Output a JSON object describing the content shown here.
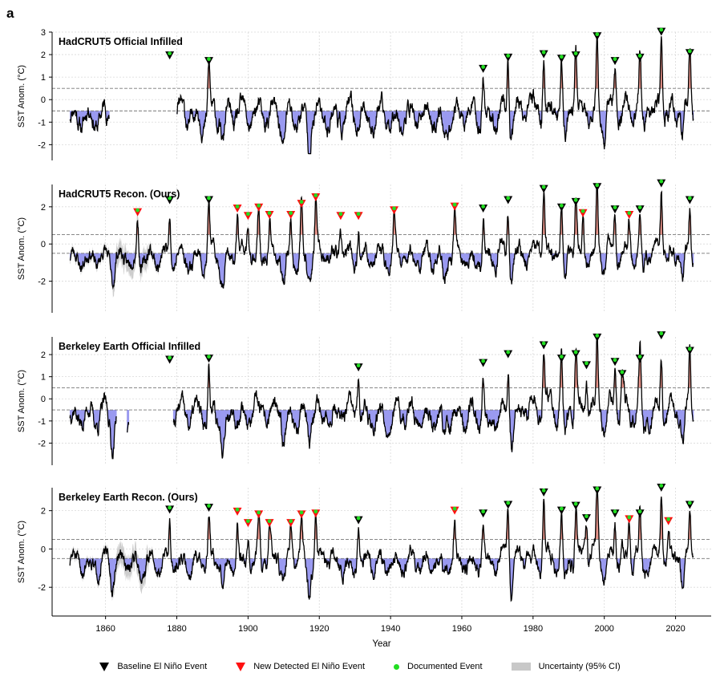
{
  "figure_label": "a",
  "colors": {
    "line": "#000000",
    "warm_fill": "#e8948a",
    "cool_fill": "#9a9af0",
    "baseline_marker": "#000000",
    "new_marker": "#ff1010",
    "documented_dot": "#22dd22",
    "uncertainty": "#c8c8c8",
    "grid": "#d9d9d9",
    "threshold": "#777777"
  },
  "legend": {
    "baseline": "Baseline El Niño Event",
    "new": "New Detected El Niño Event",
    "documented": "Documented Event",
    "uncertainty": "Uncertainty (95% CI)"
  },
  "chart_data": [
    {
      "type": "line",
      "title": "HadCRUT5 Official Infilled",
      "ylabel": "SST Anom. (°C)",
      "xlabel": "",
      "xlim": [
        1845,
        2030
      ],
      "ylim": [
        -2.7,
        3.0
      ],
      "yticks": [
        -2,
        -1,
        0,
        1,
        2,
        3
      ],
      "thresholds": [
        0.5,
        -0.5
      ],
      "data_start": 1850,
      "data_end": 2025,
      "gaps": [
        [
          1861,
          1880
        ]
      ],
      "has_uncertainty": false,
      "seed": 11,
      "events": [
        {
          "year": 1878,
          "value": 1.75,
          "kind": "baseline"
        },
        {
          "year": 1889,
          "value": 1.5,
          "kind": "baseline"
        },
        {
          "year": 1966,
          "value": 1.15,
          "kind": "baseline"
        },
        {
          "year": 1973,
          "value": 1.65,
          "kind": "baseline"
        },
        {
          "year": 1983,
          "value": 1.8,
          "kind": "baseline"
        },
        {
          "year": 1988,
          "value": 1.6,
          "kind": "baseline"
        },
        {
          "year": 1992,
          "value": 1.75,
          "kind": "baseline"
        },
        {
          "year": 1998,
          "value": 2.6,
          "kind": "baseline"
        },
        {
          "year": 2003,
          "value": 1.5,
          "kind": "baseline"
        },
        {
          "year": 2010,
          "value": 1.65,
          "kind": "baseline"
        },
        {
          "year": 2016,
          "value": 2.8,
          "kind": "baseline"
        },
        {
          "year": 2024,
          "value": 1.85,
          "kind": "baseline"
        }
      ]
    },
    {
      "type": "line",
      "title": "HadCRUT5 Recon. (Ours)",
      "ylabel": "SST Anom. (°C)",
      "xlabel": "",
      "xlim": [
        1845,
        2030
      ],
      "ylim": [
        -3.7,
        3.2
      ],
      "yticks": [
        -2,
        0,
        2
      ],
      "thresholds": [
        0.5,
        -0.5
      ],
      "data_start": 1850,
      "data_end": 2025,
      "gaps": [],
      "has_uncertainty": true,
      "seed": 23,
      "events": [
        {
          "year": 1869,
          "value": 1.45,
          "kind": "new"
        },
        {
          "year": 1878,
          "value": 2.1,
          "kind": "baseline"
        },
        {
          "year": 1889,
          "value": 2.1,
          "kind": "baseline"
        },
        {
          "year": 1897,
          "value": 1.65,
          "kind": "new"
        },
        {
          "year": 1900,
          "value": 1.25,
          "kind": "new"
        },
        {
          "year": 1903,
          "value": 1.7,
          "kind": "new"
        },
        {
          "year": 1906,
          "value": 1.3,
          "kind": "new"
        },
        {
          "year": 1912,
          "value": 1.3,
          "kind": "new"
        },
        {
          "year": 1915,
          "value": 1.9,
          "kind": "new"
        },
        {
          "year": 1919,
          "value": 2.25,
          "kind": "new"
        },
        {
          "year": 1926,
          "value": 1.25,
          "kind": "new"
        },
        {
          "year": 1931,
          "value": 1.25,
          "kind": "new"
        },
        {
          "year": 1941,
          "value": 1.55,
          "kind": "new"
        },
        {
          "year": 1958,
          "value": 1.75,
          "kind": "new"
        },
        {
          "year": 1966,
          "value": 1.65,
          "kind": "baseline"
        },
        {
          "year": 1973,
          "value": 2.1,
          "kind": "baseline"
        },
        {
          "year": 1983,
          "value": 2.7,
          "kind": "baseline"
        },
        {
          "year": 1988,
          "value": 1.7,
          "kind": "baseline"
        },
        {
          "year": 1992,
          "value": 2.0,
          "kind": "baseline"
        },
        {
          "year": 1994,
          "value": 1.4,
          "kind": "new"
        },
        {
          "year": 1998,
          "value": 2.8,
          "kind": "baseline"
        },
        {
          "year": 2003,
          "value": 1.6,
          "kind": "baseline"
        },
        {
          "year": 2007,
          "value": 1.3,
          "kind": "new"
        },
        {
          "year": 2010,
          "value": 1.6,
          "kind": "baseline"
        },
        {
          "year": 2016,
          "value": 3.0,
          "kind": "baseline"
        },
        {
          "year": 2024,
          "value": 2.1,
          "kind": "baseline"
        }
      ]
    },
    {
      "type": "line",
      "title": "Berkeley Earth Official Infilled",
      "ylabel": "SST Anom. (°C)",
      "xlabel": "",
      "xlim": [
        1845,
        2030
      ],
      "ylim": [
        -3.0,
        2.8
      ],
      "yticks": [
        -2,
        -1,
        0,
        1,
        2
      ],
      "thresholds": [
        0.5,
        -0.5
      ],
      "data_start": 1850,
      "data_end": 2025,
      "gaps": [
        [
          1863,
          1866
        ],
        [
          1866.5,
          1879
        ]
      ],
      "has_uncertainty": false,
      "seed": 37,
      "events": [
        {
          "year": 1878,
          "value": 1.55,
          "kind": "baseline"
        },
        {
          "year": 1889,
          "value": 1.6,
          "kind": "baseline"
        },
        {
          "year": 1931,
          "value": 1.2,
          "kind": "baseline"
        },
        {
          "year": 1966,
          "value": 1.4,
          "kind": "baseline"
        },
        {
          "year": 1973,
          "value": 1.8,
          "kind": "baseline"
        },
        {
          "year": 1983,
          "value": 2.2,
          "kind": "baseline"
        },
        {
          "year": 1988,
          "value": 1.6,
          "kind": "baseline"
        },
        {
          "year": 1992,
          "value": 1.8,
          "kind": "baseline"
        },
        {
          "year": 1995,
          "value": 1.3,
          "kind": "baseline"
        },
        {
          "year": 1998,
          "value": 2.55,
          "kind": "baseline"
        },
        {
          "year": 2003,
          "value": 1.45,
          "kind": "baseline"
        },
        {
          "year": 2005,
          "value": 0.9,
          "kind": "baseline"
        },
        {
          "year": 2010,
          "value": 1.6,
          "kind": "baseline"
        },
        {
          "year": 2016,
          "value": 2.65,
          "kind": "baseline"
        },
        {
          "year": 2024,
          "value": 1.95,
          "kind": "baseline"
        }
      ]
    },
    {
      "type": "line",
      "title": "Berkeley Earth Recon. (Ours)",
      "ylabel": "SST Anom. (°C)",
      "xlabel": "Year",
      "xlim": [
        1845,
        2030
      ],
      "ylim": [
        -3.5,
        3.2
      ],
      "yticks": [
        -2,
        0,
        2
      ],
      "xticks": [
        1860,
        1880,
        1900,
        1920,
        1940,
        1960,
        1980,
        2000,
        2020
      ],
      "thresholds": [
        0.5,
        -0.5
      ],
      "data_start": 1850,
      "data_end": 2025,
      "gaps": [],
      "has_uncertainty": true,
      "seed": 51,
      "events": [
        {
          "year": 1878,
          "value": 1.8,
          "kind": "baseline"
        },
        {
          "year": 1889,
          "value": 1.9,
          "kind": "baseline"
        },
        {
          "year": 1897,
          "value": 1.7,
          "kind": "new"
        },
        {
          "year": 1900,
          "value": 1.1,
          "kind": "new"
        },
        {
          "year": 1903,
          "value": 1.55,
          "kind": "new"
        },
        {
          "year": 1906,
          "value": 1.1,
          "kind": "new"
        },
        {
          "year": 1912,
          "value": 1.1,
          "kind": "new"
        },
        {
          "year": 1915,
          "value": 1.55,
          "kind": "new"
        },
        {
          "year": 1919,
          "value": 1.6,
          "kind": "new"
        },
        {
          "year": 1931,
          "value": 1.25,
          "kind": "baseline"
        },
        {
          "year": 1958,
          "value": 1.75,
          "kind": "new"
        },
        {
          "year": 1966,
          "value": 1.6,
          "kind": "baseline"
        },
        {
          "year": 1973,
          "value": 2.05,
          "kind": "baseline"
        },
        {
          "year": 1983,
          "value": 2.7,
          "kind": "baseline"
        },
        {
          "year": 1988,
          "value": 1.75,
          "kind": "baseline"
        },
        {
          "year": 1992,
          "value": 2.0,
          "kind": "baseline"
        },
        {
          "year": 1995,
          "value": 1.35,
          "kind": "baseline"
        },
        {
          "year": 1998,
          "value": 2.8,
          "kind": "baseline"
        },
        {
          "year": 2003,
          "value": 1.6,
          "kind": "baseline"
        },
        {
          "year": 2007,
          "value": 1.3,
          "kind": "new"
        },
        {
          "year": 2010,
          "value": 1.6,
          "kind": "baseline"
        },
        {
          "year": 2016,
          "value": 2.95,
          "kind": "baseline"
        },
        {
          "year": 2018,
          "value": 1.2,
          "kind": "new"
        },
        {
          "year": 2024,
          "value": 2.05,
          "kind": "baseline"
        }
      ]
    }
  ]
}
